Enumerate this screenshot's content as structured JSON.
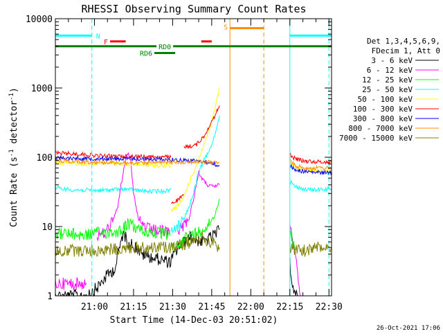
{
  "chart_data": {
    "type": "line",
    "title": "RHESSI Observing Summary Count Rates",
    "xlabel": "Start Time (14-Dec-03 20:51:02)",
    "ylabel": "Count Rate (s^-1 detector^-1)",
    "ylabel_prefix": "Count Rate (s",
    "ylabel_sup1": "-1",
    "ylabel_mid": " detector",
    "ylabel_sup2": "-1",
    "ylabel_suffix": ")",
    "x_range_min": [
      -6,
      100
    ],
    "y_scale": "log",
    "ylim": [
      1,
      10000
    ],
    "y_ticks": [
      {
        "v": 1,
        "label": "1"
      },
      {
        "v": 10,
        "label": "10"
      },
      {
        "v": 100,
        "label": "100"
      },
      {
        "v": 1000,
        "label": "1000"
      },
      {
        "v": 10000,
        "label": "10000"
      }
    ],
    "x_ticks": [
      {
        "m": 9,
        "label": "21:00"
      },
      {
        "m": 24,
        "label": "21:15"
      },
      {
        "m": 39,
        "label": "21:30"
      },
      {
        "m": 54,
        "label": "21:45"
      },
      {
        "m": 69,
        "label": "22:00"
      },
      {
        "m": 84,
        "label": "22:15"
      },
      {
        "m": 99,
        "label": "22:30"
      }
    ],
    "legend": {
      "header1": "Det 1,3,4,5,6,9,",
      "header2": "FDecim 1, Att 0",
      "placement": "right"
    },
    "series": [
      {
        "name": "3 - 6 keV",
        "color": "#000000",
        "segments": [
          {
            "t": [
              -6,
              5,
              10,
              14,
              17,
              18,
              20,
              22,
              25,
              27,
              32,
              36,
              38,
              41,
              46,
              50,
              54,
              56,
              57
            ],
            "v": [
              1,
              1,
              1.3,
              2,
              2.5,
              4,
              8,
              6,
              5,
              4,
              3.5,
              3.2,
              3,
              5,
              7,
              6,
              7,
              8,
              9
            ]
          },
          {
            "t": [
              84,
              85,
              86,
              87
            ],
            "v": [
              3,
              1.5,
              1,
              1
            ]
          }
        ]
      },
      {
        "name": "6 - 12 keV",
        "color": "#ff00ff",
        "segments": [
          {
            "t": [
              -6,
              6
            ],
            "v": [
              1.5,
              1.5
            ]
          },
          {
            "t": [
              10,
              13,
              16,
              18,
              19,
              20,
              21,
              22,
              23,
              24,
              26,
              30,
              35,
              38
            ],
            "v": [
              7.5,
              8,
              12,
              20,
              35,
              60,
              100,
              120,
              80,
              30,
              12,
              9,
              8.5,
              8
            ]
          },
          {
            "t": [
              41,
              45,
              47,
              49,
              51,
              53,
              55,
              57
            ],
            "v": [
              9,
              12,
              25,
              60,
              45,
              38,
              38,
              40
            ]
          },
          {
            "t": [
              84,
              86,
              88
            ],
            "v": [
              9,
              5,
              1
            ]
          }
        ]
      },
      {
        "name": "12 - 25 keV",
        "color": "#00ff00",
        "segments": [
          {
            "t": [
              -6,
              5,
              10,
              18,
              20,
              22,
              24,
              28,
              34,
              38
            ],
            "v": [
              8,
              7.5,
              8,
              8.5,
              9.5,
              11,
              10,
              8.5,
              8,
              7.5
            ]
          },
          {
            "t": [
              38.5,
              40,
              44,
              48,
              52,
              55,
              57
            ],
            "v": [
              5,
              5,
              7,
              8,
              10,
              14,
              25
            ]
          },
          {
            "t": [
              84,
              86
            ],
            "v": [
              8,
              5
            ]
          }
        ]
      },
      {
        "name": "25 - 50 keV",
        "color": "#00ffff",
        "segments": [
          {
            "t": [
              -6,
              0,
              10,
              20,
              30,
              37,
              38.3
            ],
            "v": [
              36,
              34,
              33,
              35,
              32,
              33,
              34
            ]
          },
          {
            "t": [
              38.5,
              41,
              43,
              45,
              47,
              49,
              51,
              53,
              55,
              57
            ],
            "v": [
              9,
              10,
              12,
              18,
              30,
              60,
              90,
              120,
              200,
              400
            ]
          },
          {
            "t": [
              84,
              86,
              90,
              95,
              100
            ],
            "v": [
              45,
              38,
              34,
              34,
              35
            ]
          }
        ]
      },
      {
        "name": "50 - 100 keV",
        "color": "#ffff00",
        "segments": [
          {
            "t": [
              -6,
              5,
              10,
              15,
              20,
              25,
              30,
              38.3
            ],
            "v": [
              82,
              80,
              82,
              85,
              80,
              78,
              76,
              75
            ]
          },
          {
            "t": [
              38.5,
              41,
              43,
              45,
              47,
              49,
              51,
              53,
              55,
              57
            ],
            "v": [
              17,
              20,
              25,
              40,
              60,
              95,
              150,
              250,
              450,
              1000
            ]
          },
          {
            "t": [
              84,
              86,
              90,
              95,
              100
            ],
            "v": [
              80,
              70,
              66,
              65,
              64
            ]
          }
        ]
      },
      {
        "name": "100 - 300 keV",
        "color": "#ff0000",
        "segments": [
          {
            "t": [
              -6,
              5,
              10,
              15,
              20,
              30,
              38.3
            ],
            "v": [
              115,
              110,
              105,
              104,
              103,
              102,
              100
            ]
          },
          {
            "t": [
              38.5,
              41,
              43.2
            ],
            "v": [
              22,
              24,
              28
            ]
          },
          {
            "t": [
              43.4,
              48,
              51,
              53,
              55,
              57
            ],
            "v": [
              140,
              150,
              200,
              280,
              380,
              560
            ]
          },
          {
            "t": [
              84,
              86,
              90,
              95,
              100
            ],
            "v": [
              110,
              95,
              88,
              86,
              85
            ]
          }
        ]
      },
      {
        "name": "300 - 800 keV",
        "color": "#0000ff",
        "segments": [
          {
            "t": [
              -6,
              5,
              15,
              25,
              35,
              40,
              45,
              50,
              55,
              57
            ],
            "v": [
              98,
              96,
              95,
              95,
              93,
              92,
              90,
              88,
              80,
              75
            ]
          },
          {
            "t": [
              84,
              86,
              90,
              95,
              100
            ],
            "v": [
              75,
              66,
              62,
              60,
              60
            ]
          }
        ]
      },
      {
        "name": "800 - 7000 keV",
        "color": "#ff8c00",
        "segments": [
          {
            "t": [
              -6,
              5,
              15,
              25,
              35,
              40,
              45,
              50,
              55,
              57
            ],
            "v": [
              90,
              86,
              84,
              82,
              84,
              85,
              86,
              85,
              84,
              84
            ]
          },
          {
            "t": [
              84,
              86,
              90,
              95,
              100
            ],
            "v": [
              90,
              75,
              70,
              70,
              70
            ]
          }
        ]
      },
      {
        "name": "7000 - 15000 keV",
        "color": "#808000",
        "segments": [
          {
            "t": [
              -6,
              10,
              20,
              30,
              38,
              42,
              46,
              50,
              54,
              57
            ],
            "v": [
              4.5,
              4.5,
              4.8,
              5,
              5,
              5.5,
              6,
              7,
              6,
              5
            ]
          },
          {
            "t": [
              84,
              86,
              90,
              95,
              100
            ],
            "v": [
              5,
              4.5,
              4.5,
              5,
              5
            ]
          }
        ]
      }
    ],
    "flags": [
      {
        "id": "N",
        "label": "N",
        "color": "#00ffff",
        "v": 5700,
        "t": [
          -6,
          8
        ],
        "t2": [
          84,
          100
        ]
      },
      {
        "id": "F",
        "label": "F",
        "color": "#ff0000",
        "v": 4700,
        "t": [
          15,
          21
        ],
        "t2": [
          50,
          54
        ]
      },
      {
        "id": "S",
        "label": "S",
        "color": "#ff8c00",
        "v": 7300,
        "t": [
          61,
          74
        ]
      },
      {
        "id": "RD0",
        "label": "RD0",
        "color": "#008000",
        "v": 4000,
        "t": [
          -6,
          100
        ]
      },
      {
        "id": "RD6",
        "label": "RD6",
        "color": "#008000",
        "v": 3200,
        "t": [
          32,
          40
        ]
      }
    ],
    "vlines": [
      {
        "t": -6,
        "color": "#00ffff",
        "style": "solid"
      },
      {
        "t": 8,
        "color": "#00ffff",
        "style": "dashed"
      },
      {
        "t": 61,
        "color": "#ff8c00",
        "style": "solid"
      },
      {
        "t": 74,
        "color": "#ff8c00",
        "style": "dashed"
      },
      {
        "t": 84,
        "color": "#00ffff",
        "style": "solid"
      },
      {
        "t": 99,
        "color": "#00ffff",
        "style": "dashed"
      }
    ],
    "grid": false
  },
  "footer": {
    "timestamp": "26-Oct-2021 17:06"
  }
}
